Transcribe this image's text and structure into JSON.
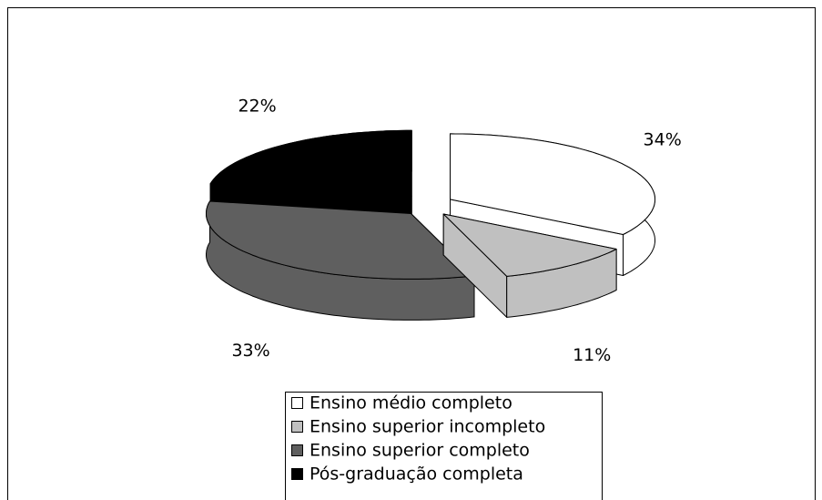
{
  "chart_data": {
    "type": "pie",
    "categories": [
      "Ensino médio completo",
      "Ensino superior incompleto",
      "Ensino superior completo",
      "Pós-graduação completa"
    ],
    "values": [
      34,
      11,
      33,
      22
    ],
    "value_labels": [
      "34%",
      "11%",
      "33%",
      "22%"
    ],
    "colors": [
      "#ffffff",
      "#c0c0c0",
      "#5f5f5f",
      "#000000"
    ]
  }
}
